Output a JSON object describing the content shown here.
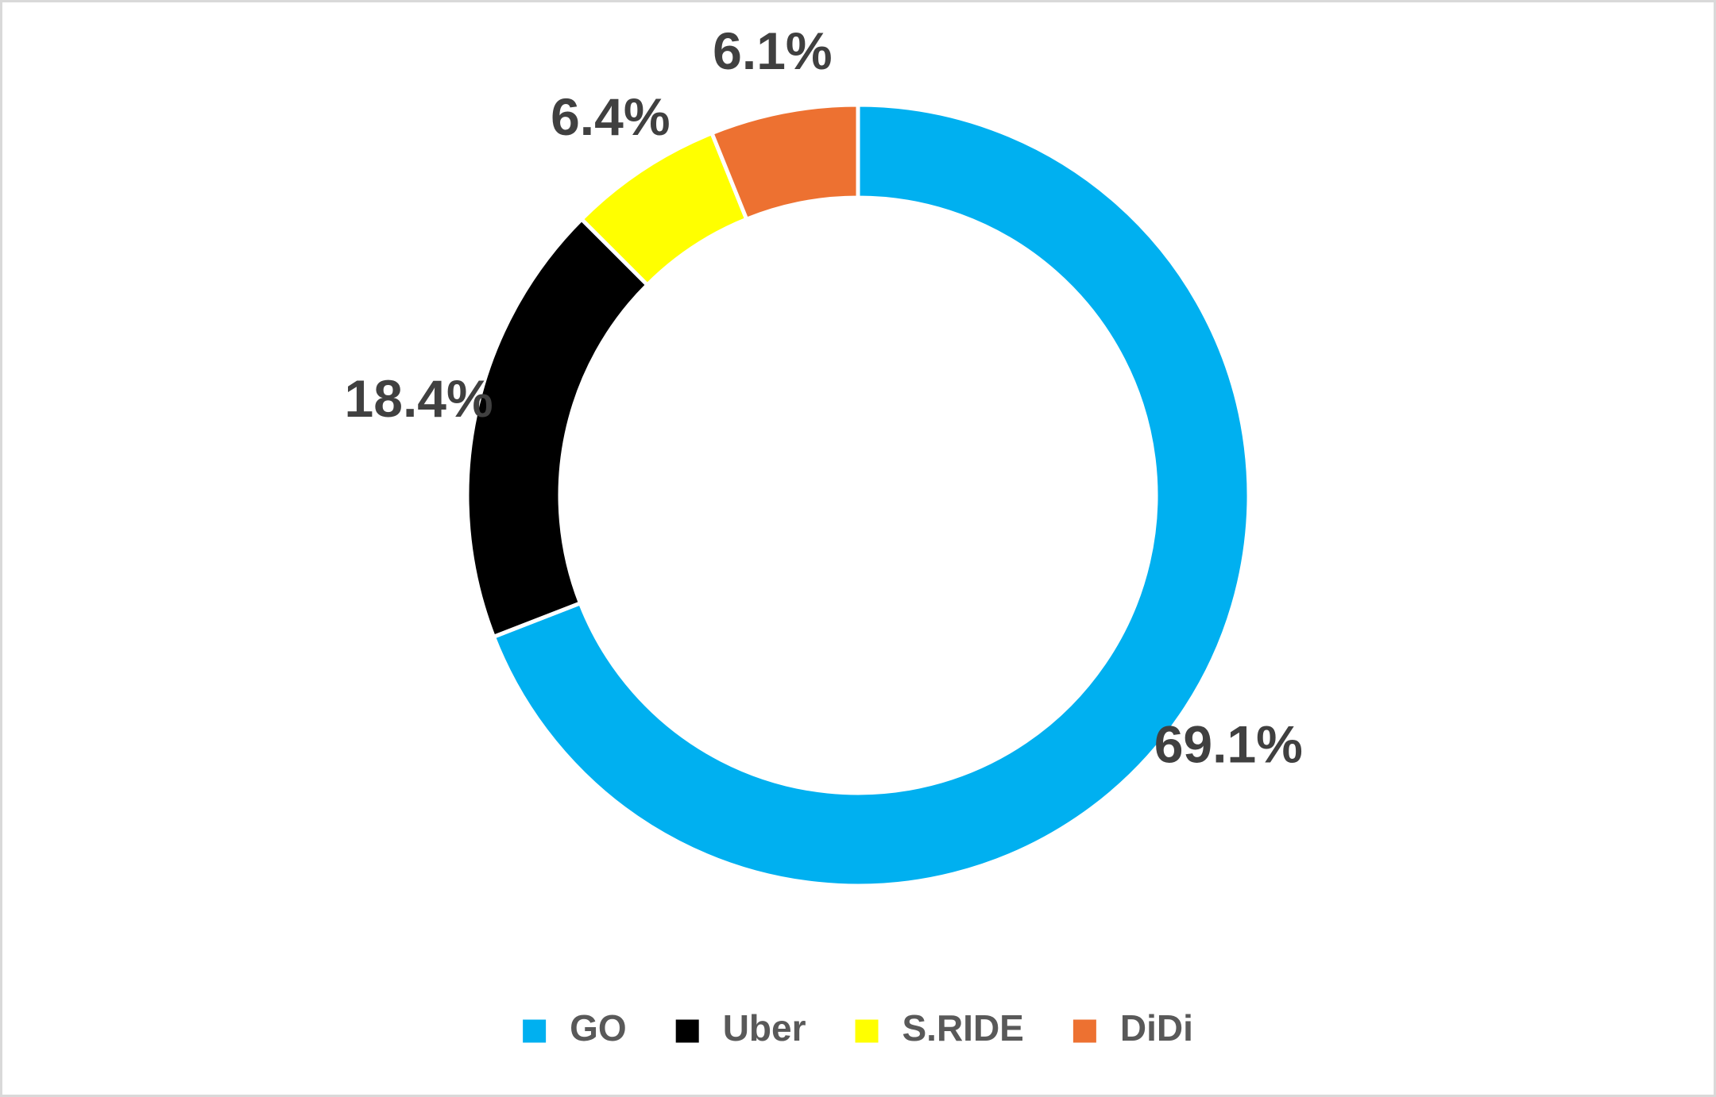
{
  "chart_data": {
    "type": "donut",
    "categories": [
      "GO",
      "Uber",
      "S.RIDE",
      "DiDi"
    ],
    "values": [
      69.1,
      18.4,
      6.4,
      6.1
    ],
    "value_labels": [
      "69.1%",
      "18.4%",
      "6.4%",
      "6.1%"
    ],
    "colors": [
      "#00b0f0",
      "#000000",
      "#ffff00",
      "#ed7131"
    ],
    "legend": "bottom"
  }
}
